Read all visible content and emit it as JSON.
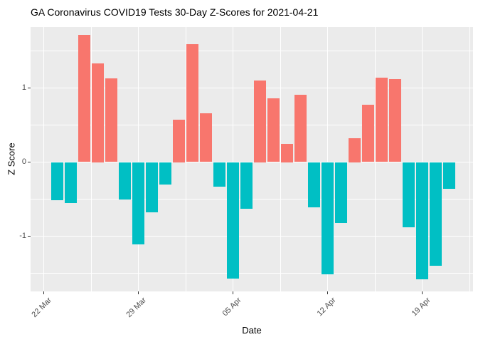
{
  "title": "GA Coronavirus COVID19 Tests 30-Day Z-Scores for 2021-04-21",
  "chart_data": {
    "type": "bar",
    "title": "GA Coronavirus COVID19 Tests 30-Day Z-Scores for 2021-04-21",
    "xlabel": "Date",
    "ylabel": "Z Score",
    "legend_position": "none",
    "grid": true,
    "categories": [
      "23 Mar",
      "24 Mar",
      "25 Mar",
      "26 Mar",
      "27 Mar",
      "28 Mar",
      "29 Mar",
      "30 Mar",
      "31 Mar",
      "01 Apr",
      "02 Apr",
      "03 Apr",
      "04 Apr",
      "05 Apr",
      "06 Apr",
      "07 Apr",
      "08 Apr",
      "09 Apr",
      "10 Apr",
      "11 Apr",
      "12 Apr",
      "13 Apr",
      "14 Apr",
      "15 Apr",
      "16 Apr",
      "17 Apr",
      "18 Apr",
      "19 Apr",
      "20 Apr",
      "21 Apr"
    ],
    "values": [
      -0.51,
      -0.55,
      1.72,
      1.33,
      1.13,
      -0.5,
      -1.11,
      -0.68,
      -0.3,
      0.57,
      1.59,
      0.66,
      -0.33,
      -1.57,
      -0.63,
      1.1,
      0.86,
      0.25,
      0.91,
      -0.61,
      -1.51,
      -0.82,
      0.32,
      0.77,
      1.14,
      1.12,
      -0.88,
      -1.58,
      -1.4,
      -0.36
    ],
    "y_tick_values": [
      1,
      0,
      -1
    ],
    "y_tick_labels": [
      "1",
      "0",
      "-1"
    ],
    "y_minor_values": [
      1.5,
      0.5,
      -0.5,
      -1.5
    ],
    "x_tick_labels": [
      "22 Mar",
      "29 Mar",
      "05 Apr",
      "12 Apr",
      "19 Apr"
    ],
    "x_tick_days": [
      -1,
      6,
      13,
      20,
      27
    ],
    "x_minor_days": [
      2.5,
      9.5,
      16.5,
      23.5,
      30.5
    ],
    "ylim": [
      -1.745,
      1.822
    ],
    "xlim": [
      -1.974,
      30.763
    ],
    "colors": {
      "positive_bar": "#F8766D",
      "negative_bar": "#00BFC4",
      "panel_background": "#EBEBEB",
      "gridline": "#FFFFFF",
      "axis_text": "#4D4D4D",
      "tick_mark": "#333333",
      "title_text": "#000000"
    }
  }
}
